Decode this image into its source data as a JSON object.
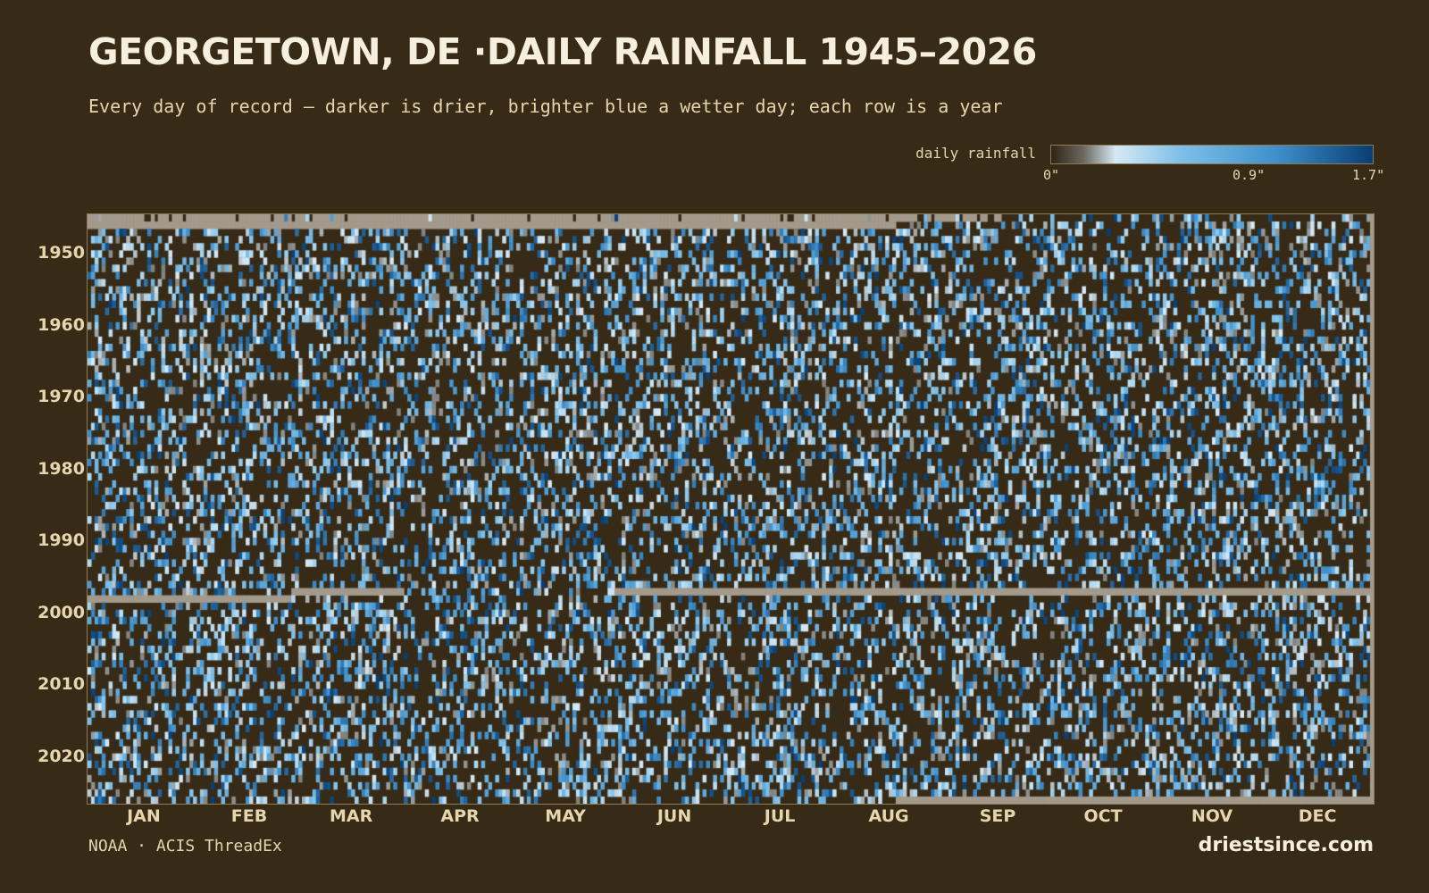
{
  "title": "GEORGETOWN, DE ·DAILY RAINFALL 1945–2026",
  "subtitle": "Every day of record — darker is drier, brighter blue a wetter day; each row is a year",
  "legend": {
    "label": "daily rainfall",
    "ticks": [
      "0\"",
      "0.9\"",
      "1.7\""
    ],
    "colors": [
      "#2f2414",
      "#6b6860",
      "#d6e9f5",
      "#7fc0e8",
      "#3f8fcb",
      "#093e73"
    ]
  },
  "footer": {
    "source": "NOAA · ACIS ThreadEx",
    "brand": "driestsince.com"
  },
  "colors": {
    "background": "#372a16",
    "missing": "#a39a8c",
    "text": "#e6d6ae"
  },
  "chart_data": {
    "type": "heatmap",
    "title": "GEORGETOWN, DE ·DAILY RAINFALL 1945–2026",
    "subtitle": "Every day of record — darker is drier, brighter blue a wetter day; each row is a year",
    "x_axis": {
      "categories": [
        "JAN",
        "FEB",
        "MAR",
        "APR",
        "MAY",
        "JUN",
        "JUL",
        "AUG",
        "SEP",
        "OCT",
        "NOV",
        "DEC"
      ],
      "day_range": [
        1,
        366
      ]
    },
    "y_axis": {
      "range": [
        1945,
        2026
      ],
      "tick_labels": [
        "1950",
        "1960",
        "1970",
        "1980",
        "1990",
        "2000",
        "2010",
        "2020"
      ]
    },
    "value_range_inches": [
      0,
      1.7
    ],
    "colorscale": "dark brown (dry) to bright blue (wet)",
    "missing_data_periods": [
      {
        "year": 1945,
        "note": "mostly missing until mid-September"
      },
      {
        "year": 1946,
        "note": "missing January through mid-August"
      },
      {
        "year": 1997,
        "note": "missing from June through December"
      },
      {
        "year": 1997,
        "note": "missing mid-February through March"
      },
      {
        "year": 1998,
        "note": "missing January through February"
      },
      {
        "year": 2026,
        "note": "missing from mid-August through December"
      }
    ]
  }
}
